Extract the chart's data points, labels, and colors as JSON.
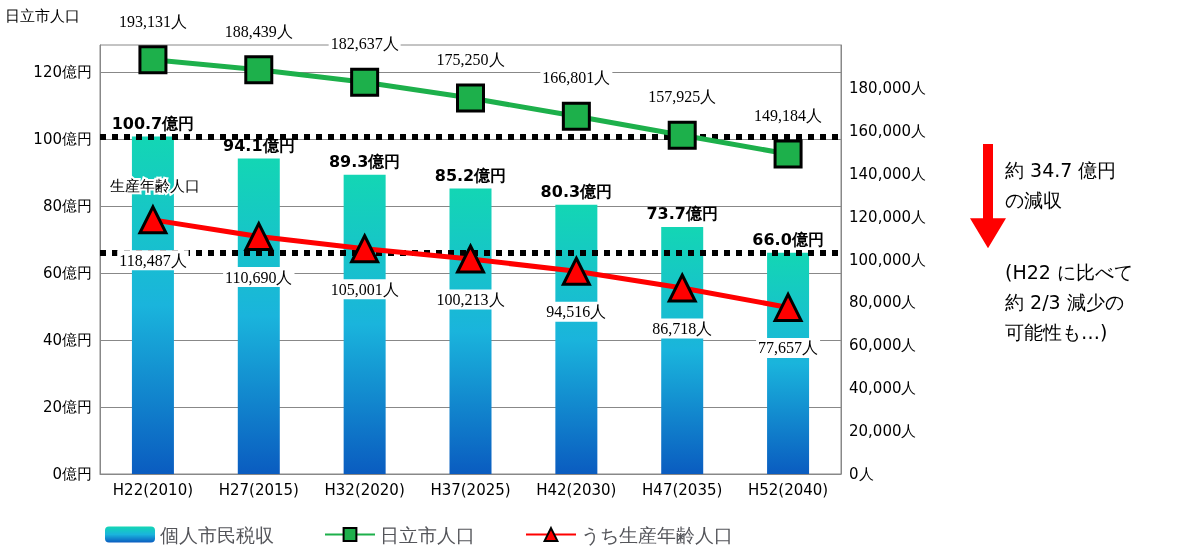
{
  "chart_data": {
    "type": "bar",
    "categories": [
      "H22(2010)",
      "H27(2015)",
      "H32(2020)",
      "H37(2025)",
      "H42(2030)",
      "H47(2035)",
      "H52(2040)"
    ],
    "series": [
      {
        "name": "個人市民税収",
        "color": "#1ab4dc",
        "values": [
          100.7,
          94.1,
          89.3,
          85.2,
          80.3,
          73.7,
          66.0
        ],
        "value_labels": [
          "100.7億円",
          "94.1億円",
          "89.3億円",
          "85.2億円",
          "80.3億円",
          "73.7億円",
          "66.0億円"
        ]
      },
      {
        "name": "日立市人口",
        "type": "line",
        "axis": "y2",
        "color": "#1db04b",
        "marker": "square",
        "values": [
          193131,
          188439,
          182637,
          175250,
          166801,
          157925,
          149184
        ],
        "value_labels": [
          "193,131人",
          "188,439人",
          "182,637人",
          "175,250人",
          "166,801人",
          "157,925人",
          "149,184人"
        ]
      },
      {
        "name": "うち生産年齢人口",
        "type": "line",
        "axis": "y2",
        "color": "#ff0000",
        "marker": "triangle",
        "values": [
          118487,
          110690,
          105001,
          100213,
          94516,
          86718,
          77657
        ],
        "value_labels": [
          "118,487人",
          "110,690人",
          "105,001人",
          "100,213人",
          "94,516人",
          "86,718人",
          "77,657人"
        ]
      }
    ],
    "ylim": [
      0,
      128
    ],
    "yticks": [
      {
        "value": 0,
        "label": "0億円"
      },
      {
        "value": 20,
        "label": "20億円"
      },
      {
        "value": 40,
        "label": "40億円"
      },
      {
        "value": 60,
        "label": "60億円"
      },
      {
        "value": 80,
        "label": "80億円"
      },
      {
        "value": 100,
        "label": "100億円"
      },
      {
        "value": 120,
        "label": "120億円"
      }
    ],
    "y2lim": [
      0,
      200000
    ],
    "y2ticks": [
      {
        "value": 0,
        "label": "0人"
      },
      {
        "value": 20000,
        "label": "20,000人"
      },
      {
        "value": 40000,
        "label": "40,000人"
      },
      {
        "value": 60000,
        "label": "60,000人"
      },
      {
        "value": 80000,
        "label": "80,000人"
      },
      {
        "value": 100000,
        "label": "100,000人"
      },
      {
        "value": 120000,
        "label": "120,000人"
      },
      {
        "value": 140000,
        "label": "140,000人"
      },
      {
        "value": 160000,
        "label": "160,000人"
      },
      {
        "value": 180000,
        "label": "180,000人"
      }
    ],
    "ref_lines": [
      {
        "axis": "y",
        "value": 100.7,
        "label": null,
        "color": "#000000",
        "line_style": "dotted"
      },
      {
        "axis": "y",
        "value": 66.0,
        "label": null,
        "color": "#000000",
        "line_style": "dotted"
      }
    ],
    "annotations": [
      "日立市人口",
      "生産年齢人口",
      "約 34.7 億円",
      "の減収",
      "(H22 に比べて",
      "約 2/3 減少の",
      "可能性も…)"
    ],
    "grid": "y",
    "legend": "bottom"
  }
}
